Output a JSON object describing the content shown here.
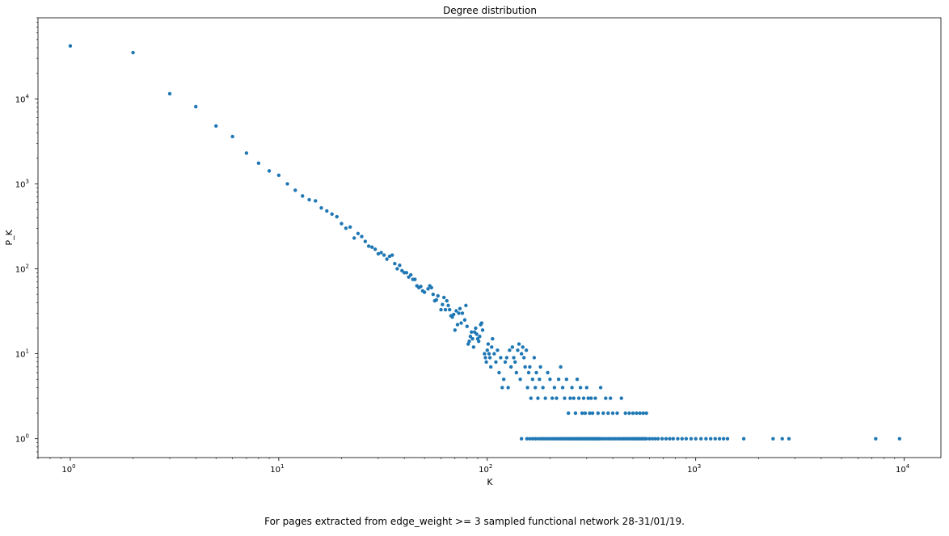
{
  "chart_data": {
    "type": "scatter",
    "title": "Degree distribution",
    "xlabel": "K",
    "ylabel": "P_K",
    "xscale": "log",
    "yscale": "log",
    "xlim": [
      0.7,
      15000
    ],
    "ylim": [
      0.6,
      90000
    ],
    "grid": false,
    "marker_color": "#1f77b4",
    "x_ticks": [
      {
        "base": "10",
        "exp": "0",
        "value": 1
      },
      {
        "base": "10",
        "exp": "1",
        "value": 10
      },
      {
        "base": "10",
        "exp": "2",
        "value": 100
      },
      {
        "base": "10",
        "exp": "3",
        "value": 1000
      },
      {
        "base": "10",
        "exp": "4",
        "value": 10000
      }
    ],
    "y_ticks": [
      {
        "base": "10",
        "exp": "0",
        "value": 1
      },
      {
        "base": "10",
        "exp": "1",
        "value": 10
      },
      {
        "base": "10",
        "exp": "2",
        "value": 100
      },
      {
        "base": "10",
        "exp": "3",
        "value": 1000
      },
      {
        "base": "10",
        "exp": "4",
        "value": 10000
      }
    ],
    "points": [
      [
        1,
        42000
      ],
      [
        2,
        35000
      ],
      [
        3,
        11500
      ],
      [
        4,
        8100
      ],
      [
        5,
        4800
      ],
      [
        6,
        3600
      ],
      [
        7,
        2300
      ],
      [
        8,
        1750
      ],
      [
        9,
        1420
      ],
      [
        10,
        1260
      ],
      [
        11,
        1000
      ],
      [
        12,
        840
      ],
      [
        13,
        720
      ],
      [
        14,
        650
      ],
      [
        15,
        630
      ],
      [
        16,
        520
      ],
      [
        17,
        480
      ],
      [
        18,
        440
      ],
      [
        19,
        410
      ],
      [
        20,
        340
      ],
      [
        21,
        300
      ],
      [
        22,
        310
      ],
      [
        23,
        230
      ],
      [
        24,
        260
      ],
      [
        25,
        240
      ],
      [
        26,
        210
      ],
      [
        27,
        185
      ],
      [
        28,
        180
      ],
      [
        29,
        170
      ],
      [
        30,
        150
      ],
      [
        31,
        155
      ],
      [
        32,
        145
      ],
      [
        33,
        130
      ],
      [
        34,
        140
      ],
      [
        35,
        145
      ],
      [
        36,
        115
      ],
      [
        37,
        100
      ],
      [
        38,
        110
      ],
      [
        39,
        95
      ],
      [
        40,
        90
      ],
      [
        41,
        90
      ],
      [
        42,
        80
      ],
      [
        43,
        85
      ],
      [
        44,
        75
      ],
      [
        45,
        75
      ],
      [
        46,
        63
      ],
      [
        47,
        60
      ],
      [
        48,
        62
      ],
      [
        49,
        55
      ],
      [
        50,
        53
      ],
      [
        52,
        58
      ],
      [
        53,
        63
      ],
      [
        54,
        60
      ],
      [
        55,
        50
      ],
      [
        56,
        42
      ],
      [
        57,
        43
      ],
      [
        58,
        48
      ],
      [
        60,
        33
      ],
      [
        61,
        38
      ],
      [
        62,
        46
      ],
      [
        63,
        33
      ],
      [
        64,
        42
      ],
      [
        65,
        37
      ],
      [
        66,
        33
      ],
      [
        67,
        28
      ],
      [
        68,
        27
      ],
      [
        69,
        29
      ],
      [
        70,
        19
      ],
      [
        71,
        32
      ],
      [
        72,
        22
      ],
      [
        73,
        30
      ],
      [
        74,
        34
      ],
      [
        75,
        23
      ],
      [
        76,
        30
      ],
      [
        78,
        25
      ],
      [
        79,
        37
      ],
      [
        80,
        21
      ],
      [
        81,
        13
      ],
      [
        82,
        14
      ],
      [
        83,
        16
      ],
      [
        84,
        18
      ],
      [
        85,
        15
      ],
      [
        86,
        12
      ],
      [
        87,
        18
      ],
      [
        88,
        20
      ],
      [
        89,
        17
      ],
      [
        90,
        15
      ],
      [
        91,
        14
      ],
      [
        92,
        16
      ],
      [
        93,
        22
      ],
      [
        94,
        23
      ],
      [
        95,
        19
      ],
      [
        97,
        10
      ],
      [
        98,
        9
      ],
      [
        99,
        8
      ],
      [
        100,
        11
      ],
      [
        101,
        13
      ],
      [
        102,
        10
      ],
      [
        103,
        9
      ],
      [
        104,
        7
      ],
      [
        105,
        12
      ],
      [
        106,
        15
      ],
      [
        108,
        10
      ],
      [
        110,
        8
      ],
      [
        112,
        11
      ],
      [
        114,
        6
      ],
      [
        116,
        9
      ],
      [
        118,
        4
      ],
      [
        120,
        5
      ],
      [
        122,
        8
      ],
      [
        124,
        9
      ],
      [
        126,
        4
      ],
      [
        128,
        11
      ],
      [
        130,
        7
      ],
      [
        132,
        12
      ],
      [
        134,
        9
      ],
      [
        136,
        8
      ],
      [
        138,
        6
      ],
      [
        140,
        11
      ],
      [
        142,
        13
      ],
      [
        144,
        5
      ],
      [
        146,
        10
      ],
      [
        148,
        12
      ],
      [
        150,
        9
      ],
      [
        152,
        7
      ],
      [
        154,
        11
      ],
      [
        156,
        4
      ],
      [
        158,
        6
      ],
      [
        160,
        7
      ],
      [
        162,
        3
      ],
      [
        165,
        5
      ],
      [
        168,
        9
      ],
      [
        170,
        4
      ],
      [
        172,
        6
      ],
      [
        175,
        3
      ],
      [
        178,
        5
      ],
      [
        180,
        7
      ],
      [
        185,
        4
      ],
      [
        190,
        3
      ],
      [
        195,
        6
      ],
      [
        200,
        5
      ],
      [
        205,
        3
      ],
      [
        210,
        4
      ],
      [
        215,
        3
      ],
      [
        220,
        5
      ],
      [
        225,
        7
      ],
      [
        230,
        4
      ],
      [
        235,
        3
      ],
      [
        240,
        5
      ],
      [
        245,
        2
      ],
      [
        250,
        3
      ],
      [
        255,
        4
      ],
      [
        260,
        3
      ],
      [
        265,
        2
      ],
      [
        270,
        5
      ],
      [
        275,
        3
      ],
      [
        280,
        4
      ],
      [
        285,
        2
      ],
      [
        290,
        3
      ],
      [
        295,
        2
      ],
      [
        300,
        4
      ],
      [
        305,
        3
      ],
      [
        310,
        2
      ],
      [
        315,
        3
      ],
      [
        320,
        2
      ],
      [
        330,
        3
      ],
      [
        340,
        2
      ],
      [
        350,
        4
      ],
      [
        360,
        2
      ],
      [
        370,
        3
      ],
      [
        380,
        2
      ],
      [
        390,
        3
      ],
      [
        400,
        2
      ],
      [
        420,
        2
      ],
      [
        440,
        3
      ],
      [
        460,
        2
      ],
      [
        480,
        2
      ],
      [
        500,
        2
      ],
      [
        520,
        2
      ],
      [
        540,
        2
      ],
      [
        560,
        2
      ],
      [
        580,
        2
      ],
      [
        146,
        1
      ],
      [
        155,
        1
      ],
      [
        160,
        1
      ],
      [
        165,
        1
      ],
      [
        170,
        1
      ],
      [
        175,
        1
      ],
      [
        180,
        1
      ],
      [
        185,
        1
      ],
      [
        190,
        1
      ],
      [
        195,
        1
      ],
      [
        200,
        1
      ],
      [
        205,
        1
      ],
      [
        210,
        1
      ],
      [
        215,
        1
      ],
      [
        220,
        1
      ],
      [
        225,
        1
      ],
      [
        230,
        1
      ],
      [
        235,
        1
      ],
      [
        240,
        1
      ],
      [
        245,
        1
      ],
      [
        250,
        1
      ],
      [
        255,
        1
      ],
      [
        260,
        1
      ],
      [
        265,
        1
      ],
      [
        270,
        1
      ],
      [
        275,
        1
      ],
      [
        280,
        1
      ],
      [
        285,
        1
      ],
      [
        290,
        1
      ],
      [
        295,
        1
      ],
      [
        300,
        1
      ],
      [
        305,
        1
      ],
      [
        310,
        1
      ],
      [
        315,
        1
      ],
      [
        320,
        1
      ],
      [
        325,
        1
      ],
      [
        330,
        1
      ],
      [
        335,
        1
      ],
      [
        340,
        1
      ],
      [
        345,
        1
      ],
      [
        350,
        1
      ],
      [
        360,
        1
      ],
      [
        370,
        1
      ],
      [
        380,
        1
      ],
      [
        390,
        1
      ],
      [
        400,
        1
      ],
      [
        410,
        1
      ],
      [
        420,
        1
      ],
      [
        430,
        1
      ],
      [
        440,
        1
      ],
      [
        450,
        1
      ],
      [
        460,
        1
      ],
      [
        470,
        1
      ],
      [
        480,
        1
      ],
      [
        490,
        1
      ],
      [
        500,
        1
      ],
      [
        510,
        1
      ],
      [
        520,
        1
      ],
      [
        530,
        1
      ],
      [
        540,
        1
      ],
      [
        550,
        1
      ],
      [
        560,
        1
      ],
      [
        570,
        1
      ],
      [
        580,
        1
      ],
      [
        600,
        1
      ],
      [
        620,
        1
      ],
      [
        640,
        1
      ],
      [
        660,
        1
      ],
      [
        690,
        1
      ],
      [
        720,
        1
      ],
      [
        750,
        1
      ],
      [
        780,
        1
      ],
      [
        820,
        1
      ],
      [
        860,
        1
      ],
      [
        900,
        1
      ],
      [
        950,
        1
      ],
      [
        1000,
        1
      ],
      [
        1060,
        1
      ],
      [
        1120,
        1
      ],
      [
        1180,
        1
      ],
      [
        1240,
        1
      ],
      [
        1300,
        1
      ],
      [
        1360,
        1
      ],
      [
        1420,
        1
      ],
      [
        1700,
        1
      ],
      [
        2350,
        1
      ],
      [
        2600,
        1
      ],
      [
        2800,
        1
      ],
      [
        7300,
        1
      ],
      [
        9500,
        1
      ]
    ]
  },
  "caption": "For pages extracted from edge_weight >= 3 sampled functional network 28-31/01/19."
}
